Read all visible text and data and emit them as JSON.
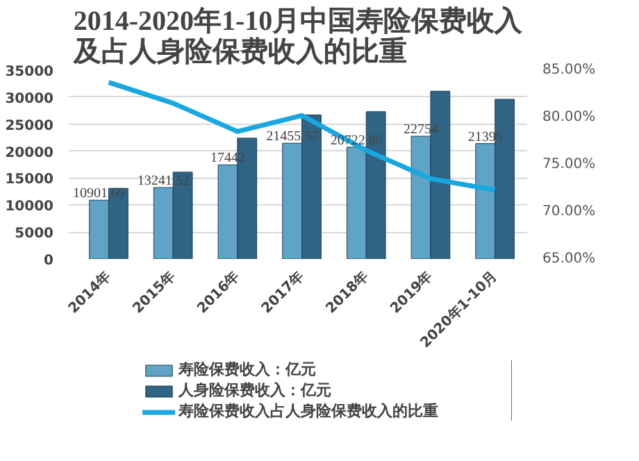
{
  "chart_data": {
    "type": "bar",
    "title": "2014-2020年1-10月中国寿险保费收入及占人身险保费收入的比重",
    "categories": [
      "2014年",
      "2015年",
      "2016年",
      "2017年",
      "2018年",
      "2019年",
      "2020年1-10月"
    ],
    "series": [
      {
        "name": "寿险保费收入：亿元",
        "color": "#5fa3c6",
        "values": [
          10901.69,
          13241.52,
          17442,
          21455.57,
          20722.86,
          22754,
          21395
        ],
        "value_labels": [
          "10901.69",
          "13241.52",
          "17442",
          "21455.57",
          "20722.86",
          "22754",
          "21395"
        ]
      },
      {
        "name": "人身险保费收入：亿元",
        "color": "#2f6485",
        "values": [
          13100,
          16100,
          22400,
          26700,
          27300,
          31100,
          29600
        ]
      },
      {
        "name": "寿险保费收入占人身险保费收入的比重",
        "type": "line",
        "axis": "y2",
        "color": "#19a7e0",
        "values": [
          83.7,
          81.5,
          78.5,
          80.2,
          76.5,
          73.5,
          72.3
        ]
      }
    ],
    "ylim": [
      0,
      35000
    ],
    "yticks": [
      0,
      5000,
      10000,
      15000,
      20000,
      25000,
      30000,
      35000
    ],
    "y2lim": [
      65,
      85
    ],
    "y2ticks": [
      {
        "value": 65,
        "label": "65.00%"
      },
      {
        "value": 70,
        "label": "70.00%"
      },
      {
        "value": 75,
        "label": "75.00%"
      },
      {
        "value": 80,
        "label": "80.00%"
      },
      {
        "value": 85,
        "label": "85.00%"
      }
    ],
    "grid": "y",
    "legend": "bottom"
  }
}
